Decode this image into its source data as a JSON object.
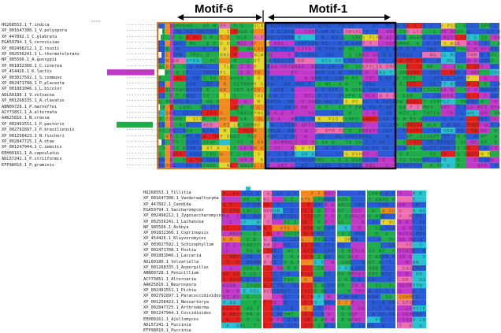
{
  "motifs": [
    {
      "label": "Motif-6"
    },
    {
      "label": "Motif-1"
    }
  ],
  "alignment_top": {
    "sequences": [
      "HQ268553.1_T.indica",
      "XP_001647300.1_V.polyspora",
      "XP_447892.1_C.glabrata",
      "EGA59794.1_S.cerevisiae",
      "XP_002498212.1_Z.rouxii",
      "XP_002556241.1_L.thermotolerans",
      "NP_985566.1_A.gossypii",
      "XP_001832360.1_C.cinerea",
      "XP_454426.1_K.lactis",
      "XP_003027592.1_S.commune",
      "XP_002471708.1_P.placenta",
      "XP_001881046.1_L.bicolor",
      "ADL60180.1_V.volvacea",
      "XP_001268335.1_A.clavatus",
      "ABN09728.1_P.marneffei",
      "ACY73851.1_A.alternata",
      "AAK25816.1_N.crassa",
      "XP_002491551.1_P.pastoris",
      "XP_002792897.1_P.brasiliensis",
      "XP_001258423.1_N.fischeri",
      "XP_002847725.1_A.otae",
      "XP_001247944.1_C.immitis",
      "EEH09161.1_A.capsulatus",
      "ADL57241.1_P.striiformis",
      "EFP98010.1_P.graminis"
    ]
  },
  "alignment_bottom": {
    "sequences": [
      "HQ268553.1_Tillitia",
      "XP_001647300.1_Vanderwaltozyma",
      "XP_447892.1_Candida",
      "EGA59794.1_Saccharomyces",
      "XP_002498212.1_Zygosaccharomyces",
      "XP_002556241.1_Lachancea",
      "NP_985566.1_Ashbya",
      "XP_001832360.1_Coprinopsis",
      "XP_454426.1_Kluyveromyces",
      "XP_003027592.1_Schizophyllum",
      "XP_002471708.1_Postia",
      "XP_001881046.1_Laccaria",
      "ADL60180.1_Volvariella",
      "XP_001268335.1_Aspergillus",
      "ABN09728.1_Penicillium",
      "ACY73851.1_Alternaria",
      "AAK25816.1_Neurospora",
      "XP_002491551.1_Pichia",
      "XP_002792897.1_Paracoccidioides",
      "XP_001258423.1_Neosartorya",
      "XP_002847725.1_Arthroderma",
      "XP_001247944.1_Coccidioides",
      "EEH09161.1_Ajellomyces",
      "ADL57241.1_Puccinia",
      "EFP98010.1_Puccinia"
    ]
  },
  "colors": {
    "green": "#1fae4b",
    "blue": "#2a5bd7",
    "magenta": "#c238c8",
    "orange": "#f08c1e",
    "red": "#e0201c",
    "pink": "#ee6fb2",
    "cyan": "#27c1d0",
    "yellow": "#e6d52a",
    "motif6_box": "#d67a26",
    "motif1_box": "#000000"
  }
}
